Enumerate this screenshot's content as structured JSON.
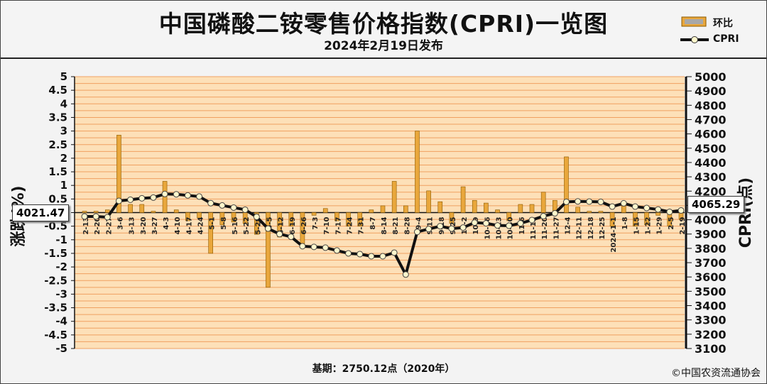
{
  "chart_data": {
    "type": "bar+line",
    "title": "中国磷酸二铵零售价格指数(CPRI)一览图",
    "subtitle": "2024年2月19日发布",
    "legend": [
      {
        "name": "环比",
        "kind": "bar"
      },
      {
        "name": "CPRI",
        "kind": "line"
      }
    ],
    "left_axis": {
      "label": "涨跌(%)",
      "range": [
        -5,
        5
      ],
      "step": 0.5,
      "ticks": [
        "5",
        "4.5",
        "4",
        "3.5",
        "3",
        "2.5",
        "2",
        "1.5",
        "1",
        "0.5",
        "0",
        "-0.5",
        "-1",
        "-1.5",
        "-2",
        "-2.5",
        "-3",
        "-3.5",
        "-4",
        "-4.5",
        "-5"
      ]
    },
    "right_axis": {
      "label": "CPRI(点)",
      "range": [
        3100,
        5000
      ],
      "step": 100,
      "ticks": [
        "5000",
        "4900",
        "4800",
        "4700",
        "4600",
        "4500",
        "4400",
        "4300",
        "4200",
        "4100",
        "4000",
        "3900",
        "3800",
        "3700",
        "3600",
        "3500",
        "3400",
        "3300",
        "3200",
        "3100"
      ]
    },
    "categories": [
      "2-13",
      "2-20",
      "2-27",
      "3-6",
      "3-13",
      "3-20",
      "3-27",
      "4-3",
      "4-10",
      "4-17",
      "4-24",
      "5-1",
      "5-8",
      "5-16",
      "5-22",
      "5-29",
      "6-5",
      "6-12",
      "6-19",
      "6-26",
      "7-3",
      "7-10",
      "7-17",
      "7-24",
      "7-31",
      "8-7",
      "8-14",
      "8-21",
      "8-28",
      "9-4",
      "9-11",
      "9-18",
      "9-25",
      "10-2",
      "10-9",
      "10-16",
      "10-23",
      "10-30",
      "11-6",
      "11-13",
      "11-20",
      "11-27",
      "12-4",
      "12-11",
      "12-18",
      "12-25",
      "2024-1-1",
      "1-8",
      "1-15",
      "1-22",
      "1-29",
      "2-5",
      "2-19"
    ],
    "series": [
      {
        "name": "环比",
        "axis": "left",
        "values": [
          0.05,
          0.05,
          0.1,
          2.85,
          0.3,
          0.3,
          0.05,
          1.15,
          0.1,
          -0.3,
          -0.2,
          -1.5,
          -0.45,
          -0.35,
          -0.4,
          -0.8,
          -2.75,
          -0.9,
          -0.5,
          -1.15,
          -0.1,
          0.15,
          -0.3,
          -0.5,
          -0.5,
          0.1,
          0.25,
          1.15,
          0.25,
          3.0,
          0.8,
          0.4,
          -0.4,
          0.95,
          0.45,
          0.35,
          0.1,
          -0.3,
          0.3,
          0.3,
          0.75,
          0.45,
          2.05,
          0.2,
          0.05,
          0.05,
          -0.5,
          0.25,
          -0.5,
          -0.45,
          -0.1,
          -0.5,
          -0.25
        ]
      },
      {
        "name": "CPRI",
        "axis": "right",
        "values": [
          4023,
          4023,
          4018,
          4132,
          4140,
          4150,
          4155,
          4180,
          4178,
          4170,
          4162,
          4116,
          4100,
          4085,
          4070,
          4020,
          3938,
          3900,
          3881,
          3815,
          3810,
          3805,
          3785,
          3765,
          3760,
          3745,
          3745,
          3770,
          3617,
          3915,
          3935,
          3955,
          3938,
          3945,
          3980,
          3975,
          3960,
          3958,
          3975,
          3998,
          4025,
          4045,
          4125,
          4128,
          4127,
          4125,
          4092,
          4115,
          4092,
          4082,
          4072,
          4055,
          4065
        ]
      }
    ],
    "callouts": {
      "left": "4021.47",
      "right": "4065.29"
    },
    "base_note": "基期：2750.12点（2020年）",
    "copyright": "©中国农资流通协会",
    "colors": {
      "bar": "#e9a73c",
      "bar_edge": "#8a5a00",
      "line": "#111111",
      "marker": "#fff7cc",
      "grid": "#f0a060",
      "plot_bg": "#fde0b8"
    }
  }
}
